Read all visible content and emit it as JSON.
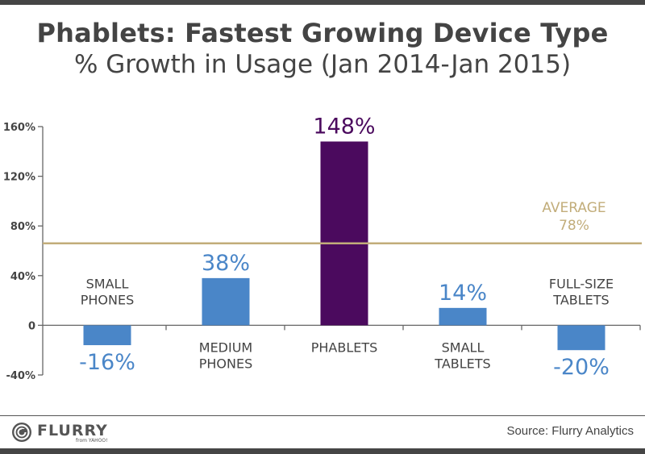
{
  "header": {
    "title": "Phablets: Fastest Growing Device Type",
    "subtitle": "% Growth in Usage (Jan 2014-Jan 2015)"
  },
  "footer": {
    "brand": "FLURRY",
    "brand_sub": "from YAHOO!",
    "brand_icon": "flurry-logo-icon",
    "source": "Source: Flurry Analytics"
  },
  "colors": {
    "bar_default": "#4a86c8",
    "bar_highlight": "#4b0a5e",
    "average": "#c2ad7a",
    "axis": "#666666",
    "label": "#444444"
  },
  "chart_data": {
    "type": "bar",
    "title": "Phablets: Fastest Growing Device Type",
    "subtitle": "% Growth in Usage (Jan 2014-Jan 2015)",
    "xlabel": "",
    "ylabel": "",
    "ylim": [
      -40,
      160
    ],
    "yticks": [
      160,
      120,
      80,
      40,
      0,
      -40
    ],
    "ytick_labels": [
      "160%",
      "120%",
      "80%",
      "40%",
      "0",
      "-40%"
    ],
    "grid": false,
    "legend": "none",
    "categories": [
      [
        "SMALL",
        "PHONES"
      ],
      [
        "MEDIUM",
        "PHONES"
      ],
      [
        "PHABLETS"
      ],
      [
        "SMALL",
        "TABLETS"
      ],
      [
        "FULL-SIZE",
        "TABLETS"
      ]
    ],
    "values": [
      -16,
      38,
      148,
      14,
      -20
    ],
    "value_labels": [
      "-16%",
      "38%",
      "148%",
      "14%",
      "-20%"
    ],
    "highlight_index": 2,
    "reference_line": {
      "label": "AVERAGE",
      "value_label": "78%",
      "value": 78,
      "plotted_level": 66
    }
  }
}
